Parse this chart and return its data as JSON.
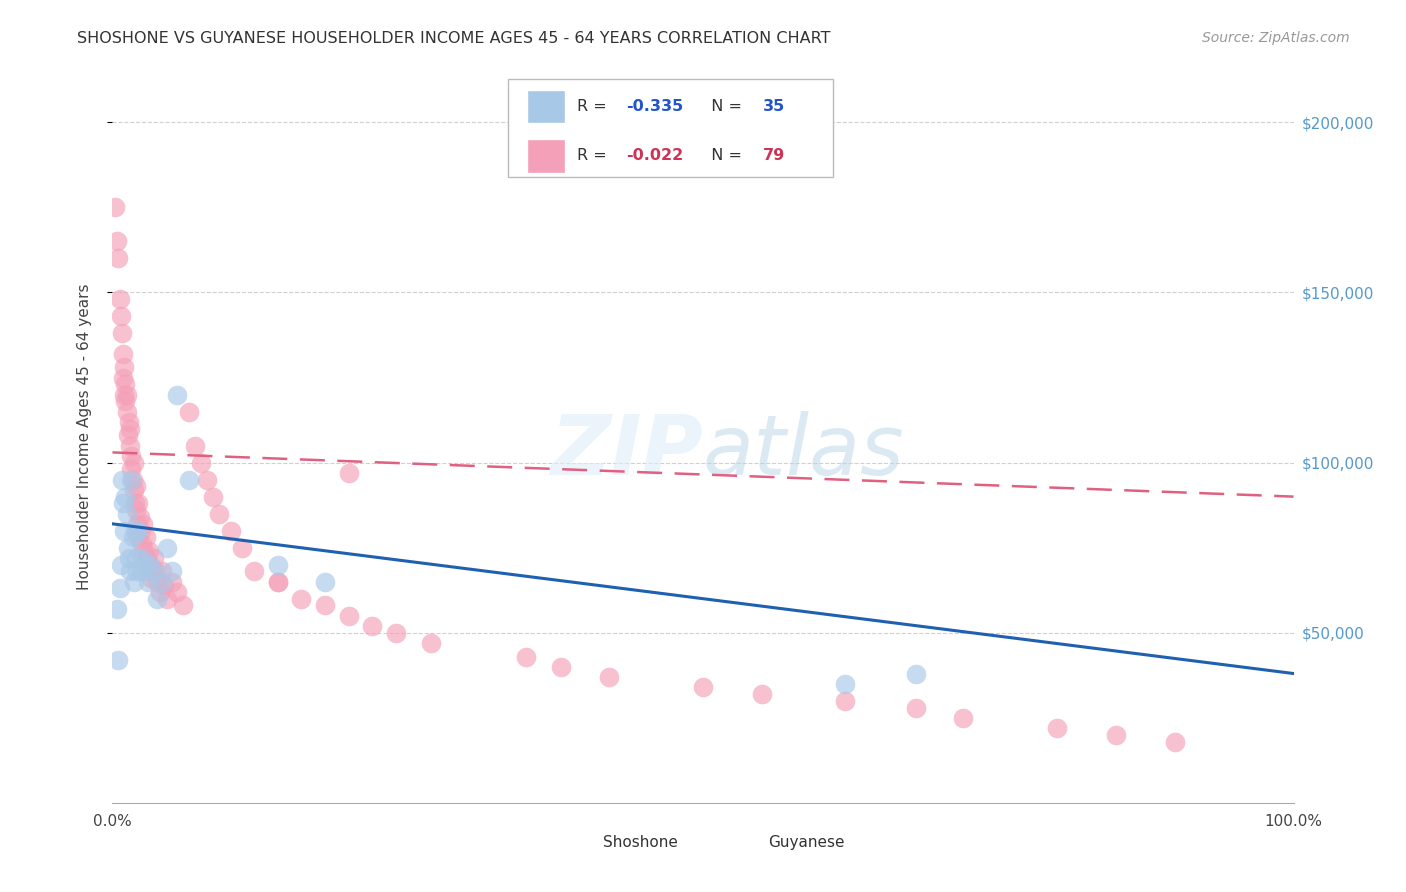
{
  "title": "SHOSHONE VS GUYANESE HOUSEHOLDER INCOME AGES 45 - 64 YEARS CORRELATION CHART",
  "source": "Source: ZipAtlas.com",
  "ylabel": "Householder Income Ages 45 - 64 years",
  "ytick_labels": [
    "$50,000",
    "$100,000",
    "$150,000",
    "$200,000"
  ],
  "ytick_values": [
    50000,
    100000,
    150000,
    200000
  ],
  "ylim": [
    0,
    215000
  ],
  "xlim": [
    0.0,
    1.0
  ],
  "watermark": "ZIPatlas",
  "shoshone_color": "#a8c8e8",
  "guyanese_color": "#f4a0b8",
  "shoshone_line_color": "#2060b0",
  "guyanese_line_color": "#e06080",
  "shoshone_x": [
    0.004,
    0.005,
    0.006,
    0.007,
    0.008,
    0.009,
    0.01,
    0.011,
    0.012,
    0.013,
    0.014,
    0.015,
    0.016,
    0.017,
    0.018,
    0.019,
    0.02,
    0.021,
    0.022,
    0.024,
    0.025,
    0.027,
    0.03,
    0.032,
    0.035,
    0.038,
    0.042,
    0.046,
    0.05,
    0.055,
    0.065,
    0.14,
    0.18,
    0.62,
    0.68
  ],
  "shoshone_y": [
    57000,
    42000,
    63000,
    70000,
    95000,
    88000,
    80000,
    90000,
    85000,
    75000,
    72000,
    68000,
    95000,
    78000,
    65000,
    80000,
    72000,
    68000,
    80000,
    68000,
    72000,
    70000,
    65000,
    70000,
    68000,
    60000,
    65000,
    75000,
    68000,
    120000,
    95000,
    70000,
    65000,
    35000,
    38000
  ],
  "guyanese_x": [
    0.002,
    0.004,
    0.005,
    0.006,
    0.007,
    0.008,
    0.009,
    0.009,
    0.01,
    0.01,
    0.011,
    0.011,
    0.012,
    0.012,
    0.013,
    0.014,
    0.015,
    0.015,
    0.016,
    0.016,
    0.017,
    0.018,
    0.018,
    0.019,
    0.02,
    0.02,
    0.021,
    0.022,
    0.022,
    0.023,
    0.024,
    0.025,
    0.026,
    0.027,
    0.028,
    0.029,
    0.03,
    0.031,
    0.032,
    0.033,
    0.035,
    0.036,
    0.038,
    0.04,
    0.042,
    0.044,
    0.046,
    0.05,
    0.055,
    0.06,
    0.065,
    0.07,
    0.075,
    0.08,
    0.085,
    0.09,
    0.1,
    0.11,
    0.12,
    0.14,
    0.16,
    0.18,
    0.2,
    0.22,
    0.24,
    0.27,
    0.35,
    0.38,
    0.42,
    0.5,
    0.55,
    0.62,
    0.68,
    0.72,
    0.8,
    0.85,
    0.9,
    0.14,
    0.2
  ],
  "guyanese_y": [
    175000,
    165000,
    160000,
    148000,
    143000,
    138000,
    132000,
    125000,
    120000,
    128000,
    118000,
    123000,
    115000,
    120000,
    108000,
    112000,
    105000,
    110000,
    102000,
    98000,
    95000,
    92000,
    100000,
    88000,
    86000,
    93000,
    82000,
    88000,
    78000,
    84000,
    80000,
    76000,
    82000,
    74000,
    78000,
    72000,
    68000,
    74000,
    70000,
    66000,
    72000,
    68000,
    65000,
    62000,
    68000,
    64000,
    60000,
    65000,
    62000,
    58000,
    115000,
    105000,
    100000,
    95000,
    90000,
    85000,
    80000,
    75000,
    68000,
    65000,
    60000,
    58000,
    55000,
    52000,
    50000,
    47000,
    43000,
    40000,
    37000,
    34000,
    32000,
    30000,
    28000,
    25000,
    22000,
    20000,
    18000,
    65000,
    97000
  ],
  "background_color": "#ffffff",
  "grid_color": "#d0d0d0",
  "shoshone_trend_x0": 0.0,
  "shoshone_trend_y0": 82000,
  "shoshone_trend_x1": 1.0,
  "shoshone_trend_y1": 38000,
  "guyanese_trend_x0": 0.0,
  "guyanese_trend_y0": 103000,
  "guyanese_trend_x1": 1.0,
  "guyanese_trend_y1": 90000
}
